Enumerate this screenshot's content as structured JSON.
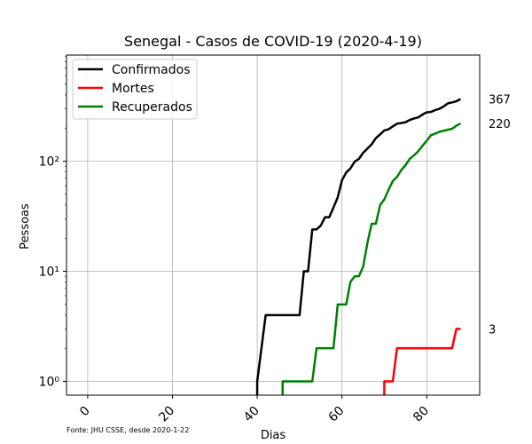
{
  "chart_data": {
    "type": "line",
    "title": "Senegal - Casos de COVID-19 (2020-4-19)",
    "xlabel": "Dias",
    "ylabel": "Pessoas",
    "y_scale": "log",
    "xlim": [
      -5,
      92.5
    ],
    "ylim": [
      0.75,
      920
    ],
    "x_ticks": [
      0,
      20,
      40,
      60,
      80
    ],
    "x_tick_labels": [
      "0",
      "20",
      "40",
      "60",
      "80"
    ],
    "y_ticks": [
      1,
      10,
      100
    ],
    "y_tick_labels": [
      "10⁰",
      "10¹",
      "10²"
    ],
    "grid": true,
    "legend_position": "top-left",
    "source_note": "Fonte: JHU CSSE, desde 2020-1-22",
    "series": [
      {
        "name": "Confirmados",
        "color": "#000000",
        "end_label": "367",
        "points": [
          [
            40,
            0.7
          ],
          [
            40,
            1
          ],
          [
            41,
            2
          ],
          [
            42,
            4
          ],
          [
            43,
            4
          ],
          [
            44,
            4
          ],
          [
            45,
            4
          ],
          [
            46,
            4
          ],
          [
            47,
            4
          ],
          [
            48,
            4
          ],
          [
            49,
            4
          ],
          [
            50,
            4
          ],
          [
            51,
            10
          ],
          [
            52,
            10
          ],
          [
            53,
            24
          ],
          [
            54,
            24
          ],
          [
            55,
            26
          ],
          [
            56,
            31
          ],
          [
            57,
            31
          ],
          [
            58,
            38
          ],
          [
            59,
            47
          ],
          [
            60,
            67
          ],
          [
            61,
            79
          ],
          [
            62,
            86
          ],
          [
            63,
            99
          ],
          [
            64,
            105
          ],
          [
            65,
            119
          ],
          [
            66,
            130
          ],
          [
            67,
            142
          ],
          [
            68,
            162
          ],
          [
            69,
            175
          ],
          [
            70,
            190
          ],
          [
            71,
            195
          ],
          [
            72,
            207
          ],
          [
            73,
            219
          ],
          [
            74,
            222
          ],
          [
            75,
            226
          ],
          [
            76,
            237
          ],
          [
            77,
            244
          ],
          [
            78,
            250
          ],
          [
            79,
            265
          ],
          [
            80,
            278
          ],
          [
            81,
            280
          ],
          [
            82,
            291
          ],
          [
            83,
            299
          ],
          [
            84,
            314
          ],
          [
            85,
            335
          ],
          [
            86,
            342
          ],
          [
            87,
            350
          ],
          [
            88,
            367
          ]
        ]
      },
      {
        "name": "Mortes",
        "color": "#ff0000",
        "end_label": "3",
        "points": [
          [
            70,
            0.7
          ],
          [
            70,
            1
          ],
          [
            71,
            1
          ],
          [
            72,
            1
          ],
          [
            73,
            2
          ],
          [
            74,
            2
          ],
          [
            75,
            2
          ],
          [
            76,
            2
          ],
          [
            77,
            2
          ],
          [
            78,
            2
          ],
          [
            79,
            2
          ],
          [
            80,
            2
          ],
          [
            81,
            2
          ],
          [
            82,
            2
          ],
          [
            83,
            2
          ],
          [
            84,
            2
          ],
          [
            85,
            2
          ],
          [
            86,
            2
          ],
          [
            87,
            3
          ],
          [
            88,
            3
          ]
        ]
      },
      {
        "name": "Recuperados",
        "color": "#008000",
        "end_label": "220",
        "points": [
          [
            46,
            0.7
          ],
          [
            46,
            1
          ],
          [
            47,
            1
          ],
          [
            48,
            1
          ],
          [
            49,
            1
          ],
          [
            50,
            1
          ],
          [
            51,
            1
          ],
          [
            52,
            1
          ],
          [
            53,
            1
          ],
          [
            54,
            2
          ],
          [
            55,
            2
          ],
          [
            56,
            2
          ],
          [
            57,
            2
          ],
          [
            58,
            2
          ],
          [
            59,
            5
          ],
          [
            60,
            5
          ],
          [
            61,
            5
          ],
          [
            62,
            8
          ],
          [
            63,
            9
          ],
          [
            64,
            9
          ],
          [
            65,
            11
          ],
          [
            66,
            18
          ],
          [
            67,
            27
          ],
          [
            68,
            27
          ],
          [
            69,
            40
          ],
          [
            70,
            45
          ],
          [
            71,
            55
          ],
          [
            72,
            66
          ],
          [
            73,
            72
          ],
          [
            74,
            83
          ],
          [
            75,
            92
          ],
          [
            76,
            105
          ],
          [
            77,
            113
          ],
          [
            78,
            123
          ],
          [
            79,
            138
          ],
          [
            80,
            153
          ],
          [
            81,
            172
          ],
          [
            82,
            178
          ],
          [
            83,
            185
          ],
          [
            84,
            189
          ],
          [
            85,
            193
          ],
          [
            86,
            197
          ],
          [
            87,
            210
          ],
          [
            88,
            220
          ]
        ]
      }
    ]
  }
}
